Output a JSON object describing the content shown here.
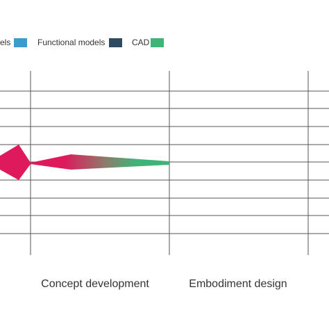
{
  "legend": [
    {
      "label": "els",
      "color": "#3b9bc9"
    },
    {
      "label": "Functional models",
      "color": "#2e4a5f"
    },
    {
      "label": "CAD",
      "color": "#3fb479"
    }
  ],
  "phases": [
    "Concept development",
    "Embodiment design"
  ],
  "colors": {
    "grid": "#555555",
    "shape_start": "#de1a5c",
    "shape_end": "#3fb479"
  }
}
